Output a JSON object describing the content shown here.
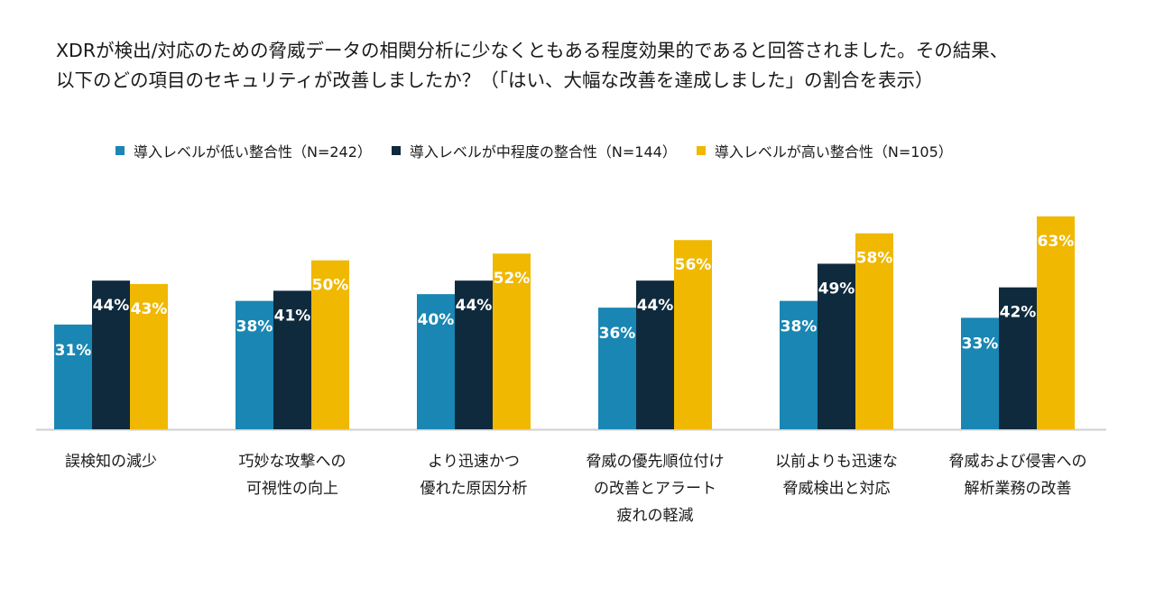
{
  "chart_data": {
    "type": "bar",
    "title_lines": [
      "XDRが検出/対応のための脅威データの相関分析に少なくともある程度効果的であると回答されました。その結果、",
      "以下のどの項目のセキュリティが改善しましたか？（「はい、大幅な改善を達成しました」の割合を表示）"
    ],
    "categories": [
      [
        "誤検知の減少"
      ],
      [
        "巧妙な攻撃への",
        "可視性の向上"
      ],
      [
        "より迅速かつ",
        "優れた原因分析"
      ],
      [
        "脅威の優先順位付け",
        "の改善とアラート",
        "疲れの軽減"
      ],
      [
        "以前よりも迅速な",
        "脅威検出と対応"
      ],
      [
        "脅威および侵害への",
        "解析業務の改善"
      ]
    ],
    "series": [
      {
        "name": "導入レベルが低い整合性（N=242）",
        "color": "#1a86b3",
        "values": [
          31,
          38,
          40,
          36,
          38,
          33
        ]
      },
      {
        "name": "導入レベルが中程度の整合性（N=144）",
        "color": "#0f2a3d",
        "values": [
          44,
          41,
          44,
          44,
          49,
          42
        ]
      },
      {
        "name": "導入レベルが高い整合性（N=105）",
        "color": "#f0b800",
        "values": [
          43,
          50,
          52,
          56,
          58,
          63
        ]
      }
    ],
    "value_suffix": "%",
    "xlabel": "",
    "ylabel": "",
    "ylim": [
      0,
      63
    ],
    "legend_position": "top"
  }
}
